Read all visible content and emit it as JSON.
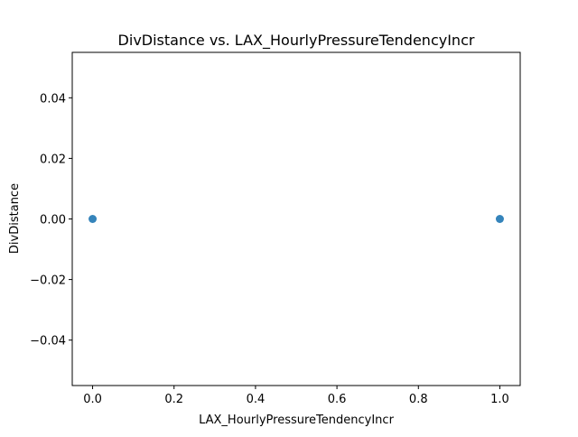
{
  "chart_data": {
    "type": "scatter",
    "title": "DivDistance vs. LAX_HourlyPressureTendencyIncr",
    "xlabel": "LAX_HourlyPressureTendencyIncr",
    "ylabel": "DivDistance",
    "xlim": [
      -0.05,
      1.05
    ],
    "ylim": [
      -0.055,
      0.055
    ],
    "xticks": [
      0.0,
      0.2,
      0.4,
      0.6,
      0.8,
      1.0
    ],
    "xtick_labels": [
      "0.0",
      "0.2",
      "0.4",
      "0.6",
      "0.8",
      "1.0"
    ],
    "yticks": [
      -0.04,
      -0.02,
      0.0,
      0.02,
      0.04
    ],
    "ytick_labels": [
      "−0.04",
      "−0.02",
      "0.00",
      "0.02",
      "0.04"
    ],
    "grid": false,
    "marker_color": "#1f77b4",
    "series": [
      {
        "points": [
          {
            "x": 0.0,
            "y": 0.0
          },
          {
            "x": 1.0,
            "y": 0.0
          }
        ]
      }
    ]
  }
}
